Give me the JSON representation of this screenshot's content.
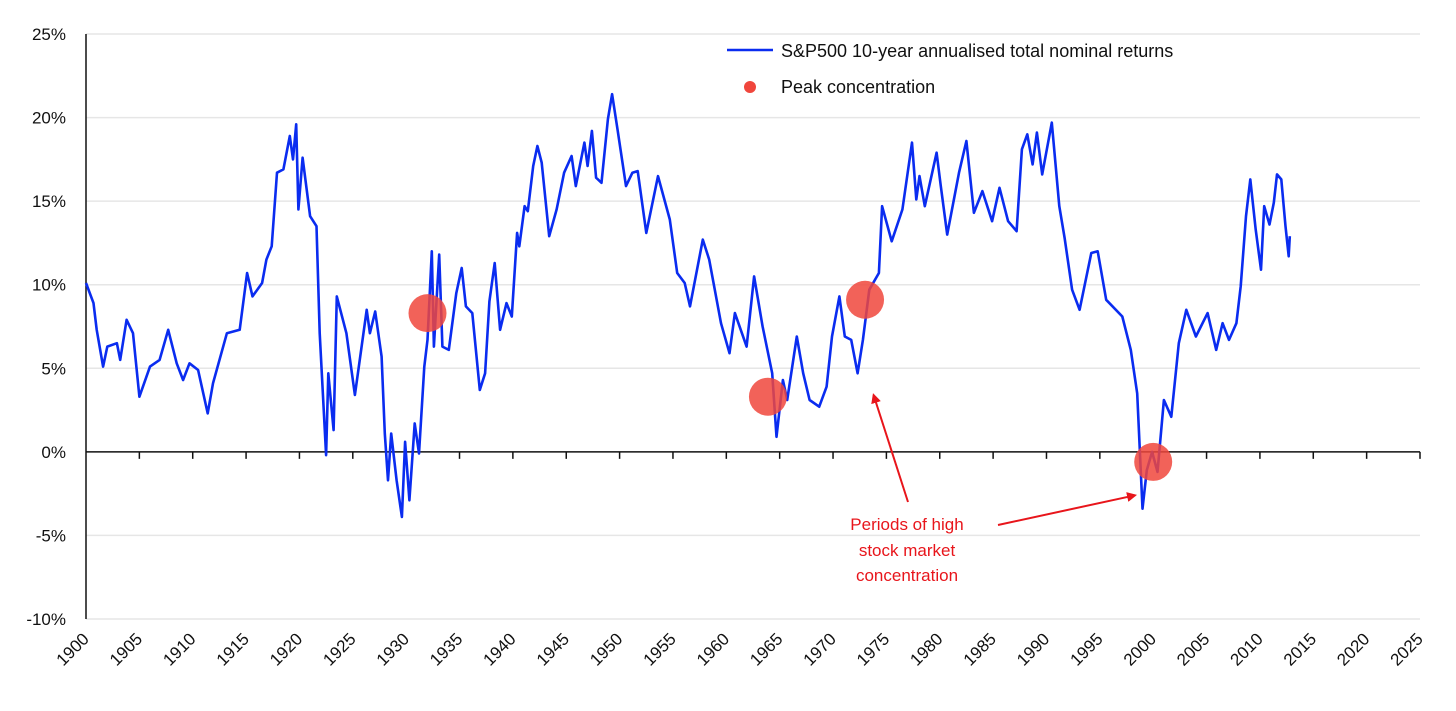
{
  "chart_data": {
    "type": "line",
    "title": "",
    "xlabel": "",
    "ylabel": "",
    "xlim": [
      1900,
      2025
    ],
    "ylim": [
      -10,
      25
    ],
    "grid": true,
    "legend_position": "top-center",
    "x_ticks": [
      "1900",
      "1905",
      "1910",
      "1915",
      "1920",
      "1925",
      "1930",
      "1935",
      "1940",
      "1945",
      "1950",
      "1955",
      "1960",
      "1965",
      "1970",
      "1975",
      "1980",
      "1985",
      "1990",
      "1995",
      "2000",
      "2005",
      "2010",
      "2015",
      "2020",
      "2025"
    ],
    "y_ticks": [
      {
        "value": 25,
        "label": "25%"
      },
      {
        "value": 20,
        "label": "20%"
      },
      {
        "value": 15,
        "label": "15%"
      },
      {
        "value": 10,
        "label": "10%"
      },
      {
        "value": 5,
        "label": "5%"
      },
      {
        "value": 0,
        "label": "0%"
      },
      {
        "value": -5,
        "label": "-5%"
      },
      {
        "value": -10,
        "label": "-10%"
      }
    ],
    "series": [
      {
        "name": "S&P500 10-year annualised total nominal returns",
        "color": "#0a2cf0",
        "points": [
          [
            1900,
            10.1
          ],
          [
            1900.7,
            8.9
          ],
          [
            1901,
            7.3
          ],
          [
            1901.6,
            5.1
          ],
          [
            1902,
            6.3
          ],
          [
            1902.9,
            6.5
          ],
          [
            1903.2,
            5.5
          ],
          [
            1903.8,
            7.9
          ],
          [
            1904.4,
            7.1
          ],
          [
            1905,
            3.3
          ],
          [
            1906,
            5.1
          ],
          [
            1906.9,
            5.5
          ],
          [
            1907.7,
            7.3
          ],
          [
            1908.5,
            5.3
          ],
          [
            1909.1,
            4.3
          ],
          [
            1909.7,
            5.3
          ],
          [
            1910.5,
            4.9
          ],
          [
            1911.4,
            2.3
          ],
          [
            1911.9,
            4.1
          ],
          [
            1913.2,
            7.1
          ],
          [
            1914.4,
            7.3
          ],
          [
            1915.1,
            10.7
          ],
          [
            1915.6,
            9.3
          ],
          [
            1916.5,
            10.1
          ],
          [
            1916.9,
            11.5
          ],
          [
            1917.4,
            12.3
          ],
          [
            1917.9,
            16.7
          ],
          [
            1918.5,
            16.9
          ],
          [
            1919.1,
            18.9
          ],
          [
            1919.4,
            17.5
          ],
          [
            1919.7,
            19.6
          ],
          [
            1919.9,
            14.5
          ],
          [
            1920.3,
            17.6
          ],
          [
            1921,
            14.1
          ],
          [
            1921.6,
            13.5
          ],
          [
            1921.9,
            7.1
          ],
          [
            1922.5,
            -0.2
          ],
          [
            1922.7,
            4.7
          ],
          [
            1923.2,
            1.3
          ],
          [
            1923.5,
            9.3
          ],
          [
            1924.4,
            7.1
          ],
          [
            1925.2,
            3.4
          ],
          [
            1926.3,
            8.5
          ],
          [
            1926.6,
            7.1
          ],
          [
            1927.1,
            8.4
          ],
          [
            1927.7,
            5.7
          ],
          [
            1928,
            1.1
          ],
          [
            1928.3,
            -1.7
          ],
          [
            1928.6,
            1.1
          ],
          [
            1929.1,
            -1.7
          ],
          [
            1929.6,
            -3.9
          ],
          [
            1929.9,
            0.6
          ],
          [
            1930.3,
            -2.9
          ],
          [
            1930.8,
            1.7
          ],
          [
            1931.2,
            -0.1
          ],
          [
            1931.7,
            5.1
          ],
          [
            1932,
            6.7
          ],
          [
            1932.4,
            12
          ],
          [
            1932.6,
            6.3
          ],
          [
            1933.1,
            11.8
          ],
          [
            1933.4,
            6.3
          ],
          [
            1934,
            6.1
          ],
          [
            1934.7,
            9.5
          ],
          [
            1935.2,
            11
          ],
          [
            1935.6,
            8.7
          ],
          [
            1936.2,
            8.3
          ],
          [
            1936.9,
            3.7
          ],
          [
            1937.4,
            4.7
          ],
          [
            1937.8,
            9
          ],
          [
            1938.3,
            11.3
          ],
          [
            1938.8,
            7.3
          ],
          [
            1939.4,
            8.9
          ],
          [
            1939.9,
            8.1
          ],
          [
            1940.4,
            13.1
          ],
          [
            1940.6,
            12.3
          ],
          [
            1941.1,
            14.7
          ],
          [
            1941.4,
            14.4
          ],
          [
            1941.9,
            17.1
          ],
          [
            1942.3,
            18.3
          ],
          [
            1942.7,
            17.3
          ],
          [
            1943.4,
            12.9
          ],
          [
            1944.1,
            14.5
          ],
          [
            1944.8,
            16.7
          ],
          [
            1945.5,
            17.7
          ],
          [
            1945.9,
            15.9
          ],
          [
            1946.7,
            18.5
          ],
          [
            1947,
            17.1
          ],
          [
            1947.4,
            19.2
          ],
          [
            1947.8,
            16.4
          ],
          [
            1948.3,
            16.1
          ],
          [
            1948.9,
            19.9
          ],
          [
            1949.3,
            21.4
          ],
          [
            1949.8,
            19.3
          ],
          [
            1950.6,
            15.9
          ],
          [
            1951.2,
            16.7
          ],
          [
            1951.7,
            16.8
          ],
          [
            1952.5,
            13.1
          ],
          [
            1953.6,
            16.5
          ],
          [
            1954.7,
            13.9
          ],
          [
            1955.4,
            10.7
          ],
          [
            1956.1,
            10.1
          ],
          [
            1956.6,
            8.7
          ],
          [
            1957.8,
            12.7
          ],
          [
            1958.4,
            11.5
          ],
          [
            1959.5,
            7.7
          ],
          [
            1960.3,
            5.9
          ],
          [
            1960.8,
            8.3
          ],
          [
            1961.9,
            6.3
          ],
          [
            1962.6,
            10.5
          ],
          [
            1963.4,
            7.5
          ],
          [
            1964.3,
            4.7
          ],
          [
            1964.7,
            0.9
          ],
          [
            1965.3,
            4.3
          ],
          [
            1965.7,
            3.1
          ],
          [
            1966.6,
            6.9
          ],
          [
            1967.2,
            4.7
          ],
          [
            1967.8,
            3.1
          ],
          [
            1968.7,
            2.7
          ],
          [
            1969.4,
            3.9
          ],
          [
            1969.9,
            6.9
          ],
          [
            1970.6,
            9.3
          ],
          [
            1971.1,
            6.9
          ],
          [
            1971.7,
            6.7
          ],
          [
            1972.3,
            4.7
          ],
          [
            1972.8,
            6.7
          ],
          [
            1973.4,
            9.7
          ],
          [
            1974.3,
            10.7
          ],
          [
            1974.6,
            14.7
          ],
          [
            1975.5,
            12.6
          ],
          [
            1976.5,
            14.5
          ],
          [
            1977.4,
            18.5
          ],
          [
            1977.8,
            15.1
          ],
          [
            1978.1,
            16.5
          ],
          [
            1978.6,
            14.7
          ],
          [
            1979.7,
            17.9
          ],
          [
            1980.1,
            15.9
          ],
          [
            1980.7,
            13
          ],
          [
            1981.8,
            16.7
          ],
          [
            1982.5,
            18.6
          ],
          [
            1983.2,
            14.3
          ],
          [
            1984,
            15.6
          ],
          [
            1984.9,
            13.8
          ],
          [
            1985.6,
            15.8
          ],
          [
            1986.4,
            13.8
          ],
          [
            1987.2,
            13.2
          ],
          [
            1987.7,
            18.1
          ],
          [
            1988.2,
            19
          ],
          [
            1988.7,
            17.2
          ],
          [
            1989.1,
            19.1
          ],
          [
            1989.6,
            16.6
          ],
          [
            1990.5,
            19.7
          ],
          [
            1991.2,
            14.7
          ],
          [
            1991.7,
            12.8
          ],
          [
            1992.4,
            9.7
          ],
          [
            1993.1,
            8.5
          ],
          [
            1994.2,
            11.9
          ],
          [
            1994.8,
            12
          ],
          [
            1995.6,
            9.1
          ],
          [
            1997.1,
            8.1
          ],
          [
            1997.9,
            6.1
          ],
          [
            1998.5,
            3.5
          ],
          [
            1999,
            -3.4
          ],
          [
            1999.4,
            -1.1
          ],
          [
            1999.9,
            0
          ],
          [
            2000.4,
            -1.2
          ],
          [
            2001,
            3.1
          ],
          [
            2001.7,
            2.1
          ],
          [
            2002.4,
            6.5
          ],
          [
            2003.1,
            8.5
          ],
          [
            2004,
            6.9
          ],
          [
            2005.1,
            8.3
          ],
          [
            2005.9,
            6.1
          ],
          [
            2006.5,
            7.7
          ],
          [
            2007.1,
            6.7
          ],
          [
            2007.8,
            7.7
          ],
          [
            2008.2,
            9.9
          ],
          [
            2008.7,
            14.1
          ],
          [
            2009.1,
            16.3
          ],
          [
            2009.6,
            13.3
          ],
          [
            2010.1,
            10.9
          ],
          [
            2010.4,
            14.7
          ],
          [
            2010.9,
            13.6
          ],
          [
            2011.3,
            14.9
          ],
          [
            2011.6,
            16.6
          ],
          [
            2012,
            16.3
          ],
          [
            2012.4,
            13.5
          ],
          [
            2012.7,
            11.7
          ],
          [
            2012.8,
            12.9
          ]
        ]
      },
      {
        "name": "Peak concentration",
        "color": "#f0463c",
        "points": [
          [
            1932,
            8.3
          ],
          [
            1963.9,
            3.3
          ],
          [
            1973,
            9.1
          ],
          [
            2000,
            -0.6
          ]
        ]
      }
    ],
    "annotation": {
      "lines": [
        "Periods of high",
        "stock market",
        "concentration"
      ],
      "color": "#e8151b",
      "arrows_point_to": [
        [
          1973.8,
          3.4
        ],
        [
          1998.3,
          -2.6
        ]
      ]
    }
  }
}
